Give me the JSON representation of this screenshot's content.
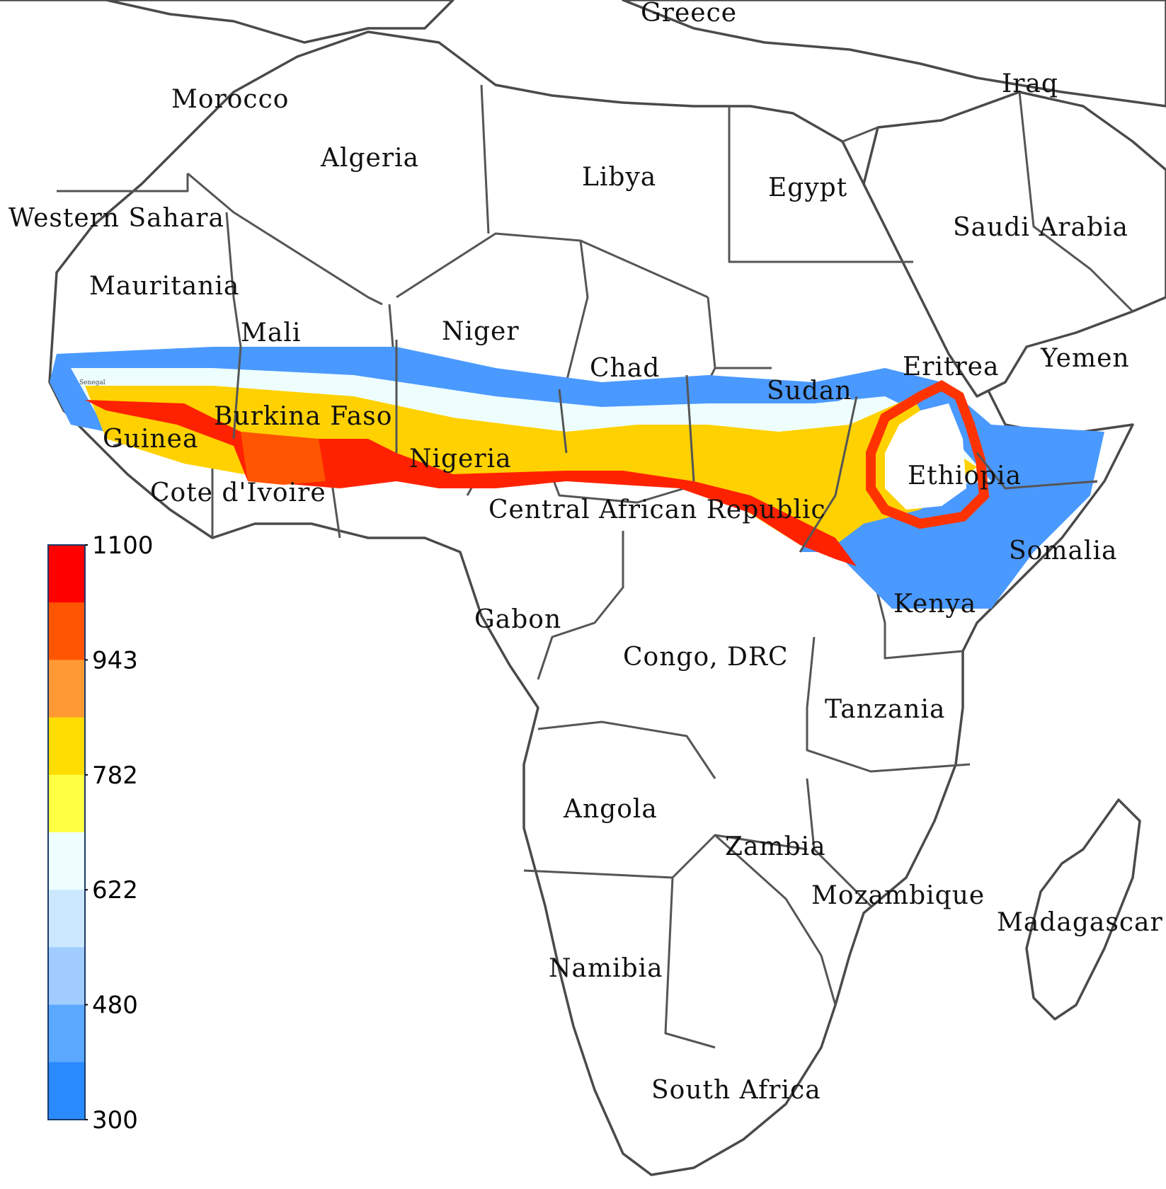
{
  "countries": [
    "Greece",
    "Morocco",
    "Algeria",
    "Libya",
    "Egypt",
    "Iraq",
    "Western Sahara",
    "Saudi Arabia",
    "Mauritania",
    "Mali",
    "Niger",
    "Chad",
    "Eritrea",
    "Yemen",
    "Sudan",
    "Burkina Faso",
    "Guinea",
    "Nigeria",
    "Ethiopia",
    "Cote d'Ivoire",
    "Central African Republic",
    "Somalia",
    "Kenya",
    "Gabon",
    "Congo, DRC",
    "Tanzania",
    "Angola",
    "Zambia",
    "Mozambique",
    "Madagascar",
    "Namibia",
    "South Africa"
  ],
  "small_labels": {
    "senegal": "Senegal"
  },
  "colorbar": {
    "ticks": [
      "1100",
      "943",
      "782",
      "622",
      "480",
      "300"
    ],
    "min": 300,
    "max": 1100,
    "colors": [
      "#ff0000",
      "#ff5500",
      "#ff9933",
      "#ffdd00",
      "#ffff44",
      "#eefeff",
      "#cce8ff",
      "#a0ccff",
      "#5aa8ff",
      "#2a8aff"
    ]
  }
}
